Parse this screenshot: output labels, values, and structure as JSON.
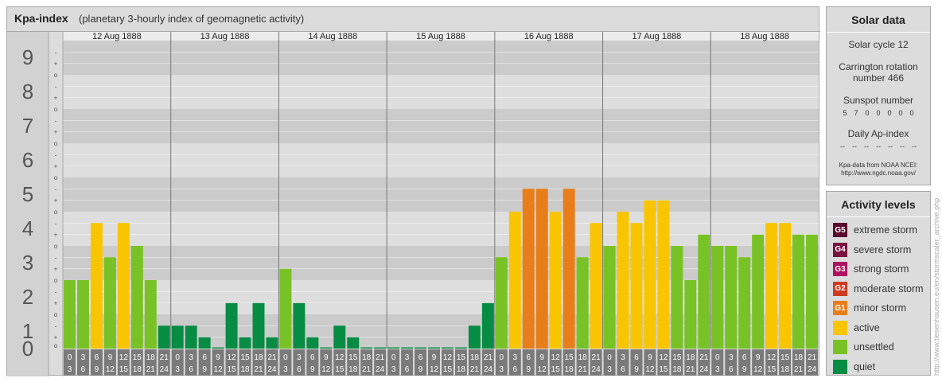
{
  "header": {
    "title": "Kpa-index",
    "subtitle": "(planetary 3-hourly index of geomagnetic activity)"
  },
  "chart_data": {
    "type": "bar",
    "title": "Kpa-index",
    "subtitle": "(planetary 3-hourly index of geomagnetic activity)",
    "ylim": [
      0,
      9
    ],
    "y_ticks": [
      "0",
      "1",
      "2",
      "3",
      "4",
      "5",
      "6",
      "7",
      "8",
      "9"
    ],
    "sub_ticks": [
      "o",
      "+",
      "-"
    ],
    "days": [
      "12 Aug 1888",
      "13 Aug 1888",
      "14 Aug 1888",
      "15 Aug 1888",
      "16 Aug 1888",
      "17 Aug 1888",
      "18 Aug 1888"
    ],
    "interval_starts": [
      "0",
      "3",
      "6",
      "9",
      "12",
      "15",
      "18",
      "21"
    ],
    "interval_ends": [
      "3",
      "6",
      "9",
      "12",
      "15",
      "18",
      "21",
      "24"
    ],
    "values": [
      2.0,
      2.0,
      3.67,
      2.67,
      3.67,
      3.0,
      2.0,
      0.67,
      0.67,
      0.67,
      0.33,
      0.0,
      1.33,
      0.33,
      1.33,
      0.33,
      2.33,
      1.33,
      0.33,
      0.0,
      0.67,
      0.33,
      0.0,
      0.0,
      0.0,
      0.0,
      0.0,
      0.0,
      0.0,
      0.0,
      0.67,
      1.33,
      2.67,
      4.0,
      4.67,
      4.67,
      4.0,
      4.67,
      2.67,
      3.67,
      3.0,
      4.0,
      3.67,
      4.33,
      4.33,
      3.0,
      2.0,
      3.33,
      3.0,
      3.0,
      2.67,
      3.33,
      3.67,
      3.67,
      3.33,
      3.33
    ],
    "grid": true
  },
  "solar": {
    "title": "Solar data",
    "cycle": "Solar cycle 12",
    "carrington_line1": "Carrington rotation",
    "carrington_line2": "number 466",
    "sunspot_label": "Sunspot number",
    "sunspot_values": [
      "5",
      "7",
      "0",
      "0",
      "0",
      "0",
      "0"
    ],
    "ap_label": "Daily Ap-index",
    "ap_values": [
      "--",
      "--",
      "--",
      "--",
      "--",
      "--",
      "--"
    ],
    "credit_line1": "Kpa-data from NOAA NCEI:",
    "credit_line2": "http://www.ngdc.noaa.gov/"
  },
  "activity": {
    "title": "Activity levels",
    "levels": [
      {
        "code": "G5",
        "label": "extreme storm",
        "color": "#5a0a2e"
      },
      {
        "code": "G4",
        "label": "severe storm",
        "color": "#7a1040"
      },
      {
        "code": "G3",
        "label": "strong storm",
        "color": "#b01060"
      },
      {
        "code": "G2",
        "label": "moderate storm",
        "color": "#d13a1e"
      },
      {
        "code": "G1",
        "label": "minor storm",
        "color": "#e87d1a"
      },
      {
        "code": "",
        "label": "active",
        "color": "#f9c500"
      },
      {
        "code": "",
        "label": "unsettled",
        "color": "#78c225"
      },
      {
        "code": "",
        "label": "quiet",
        "color": "#078c44"
      }
    ]
  },
  "watermark": "http://www.tiesenhausen.eu/en/stormscaler_archive.php"
}
